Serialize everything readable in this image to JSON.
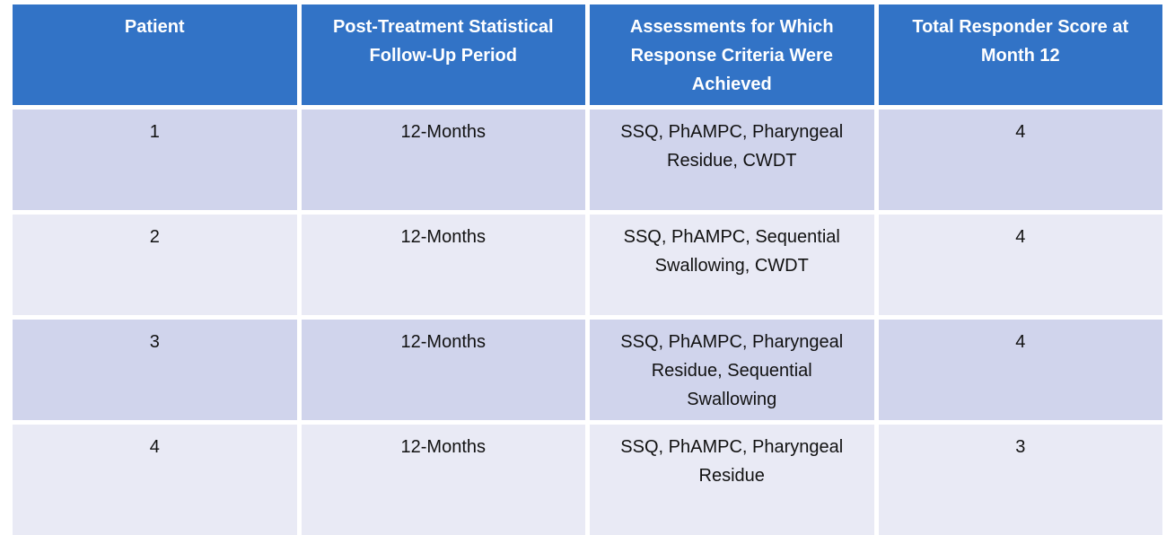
{
  "theme": {
    "header_bg": "#3273C6",
    "row_dark_bg": "#D0D4EC",
    "row_light_bg": "#E9EAF5",
    "header_text": "#FFFFFF",
    "body_text": "#111111",
    "page_bg": "#FFFFFF"
  },
  "table": {
    "columns": [
      {
        "label": "Patient"
      },
      {
        "label": "Post-Treatment Statistical Follow-Up Period"
      },
      {
        "label": "Assessments for Which Response Criteria Were Achieved"
      },
      {
        "label": "Total Responder Score at Month 12"
      }
    ],
    "rows": [
      {
        "patient": "1",
        "follow_up": "12-Months",
        "assessments": "SSQ, PhAMPC, Pharyngeal Residue, CWDT",
        "score": "4"
      },
      {
        "patient": "2",
        "follow_up": "12-Months",
        "assessments": "SSQ, PhAMPC, Sequential Swallowing, CWDT",
        "score": "4"
      },
      {
        "patient": "3",
        "follow_up": "12-Months",
        "assessments": "SSQ, PhAMPC, Pharyngeal Residue, Sequential Swallowing",
        "score": "4"
      },
      {
        "patient": "4",
        "follow_up": "12-Months",
        "assessments": "SSQ, PhAMPC, Pharyngeal Residue",
        "score": "3"
      }
    ]
  }
}
